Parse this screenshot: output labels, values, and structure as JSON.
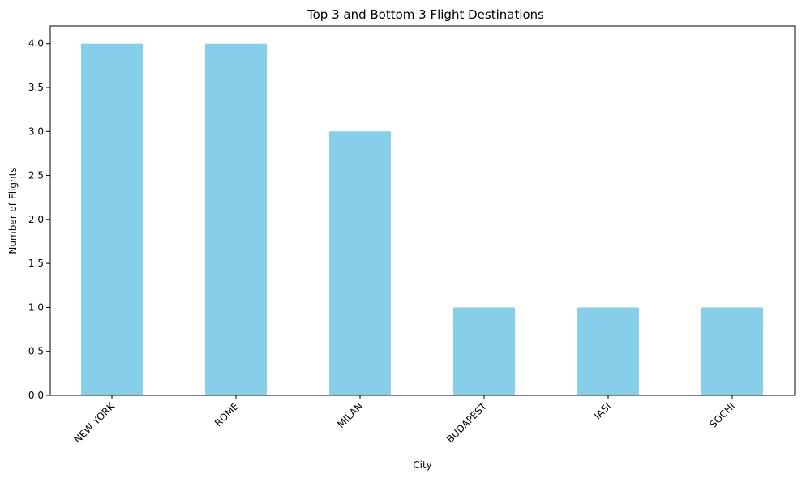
{
  "chart_data": {
    "type": "bar",
    "title": "Top 3 and Bottom 3 Flight Destinations",
    "xlabel": "City",
    "ylabel": "Number of Flights",
    "categories": [
      "NEW YORK",
      "ROME",
      "MILAN",
      "BUDAPEST",
      "IASI",
      "SOCHI"
    ],
    "values": [
      4,
      4,
      3,
      1,
      1,
      1
    ],
    "ylim": [
      0,
      4.2
    ],
    "yticks": [
      0.0,
      0.5,
      1.0,
      1.5,
      2.0,
      2.5,
      3.0,
      3.5,
      4.0
    ],
    "ytick_labels": [
      "0.0",
      "0.5",
      "1.0",
      "1.5",
      "2.0",
      "2.5",
      "3.0",
      "3.5",
      "4.0"
    ],
    "xtick_rotation": 45,
    "grid": false,
    "legend": null,
    "colors": {
      "bar": "#87ceeb",
      "axis": "#000000",
      "background": "#ffffff"
    }
  }
}
